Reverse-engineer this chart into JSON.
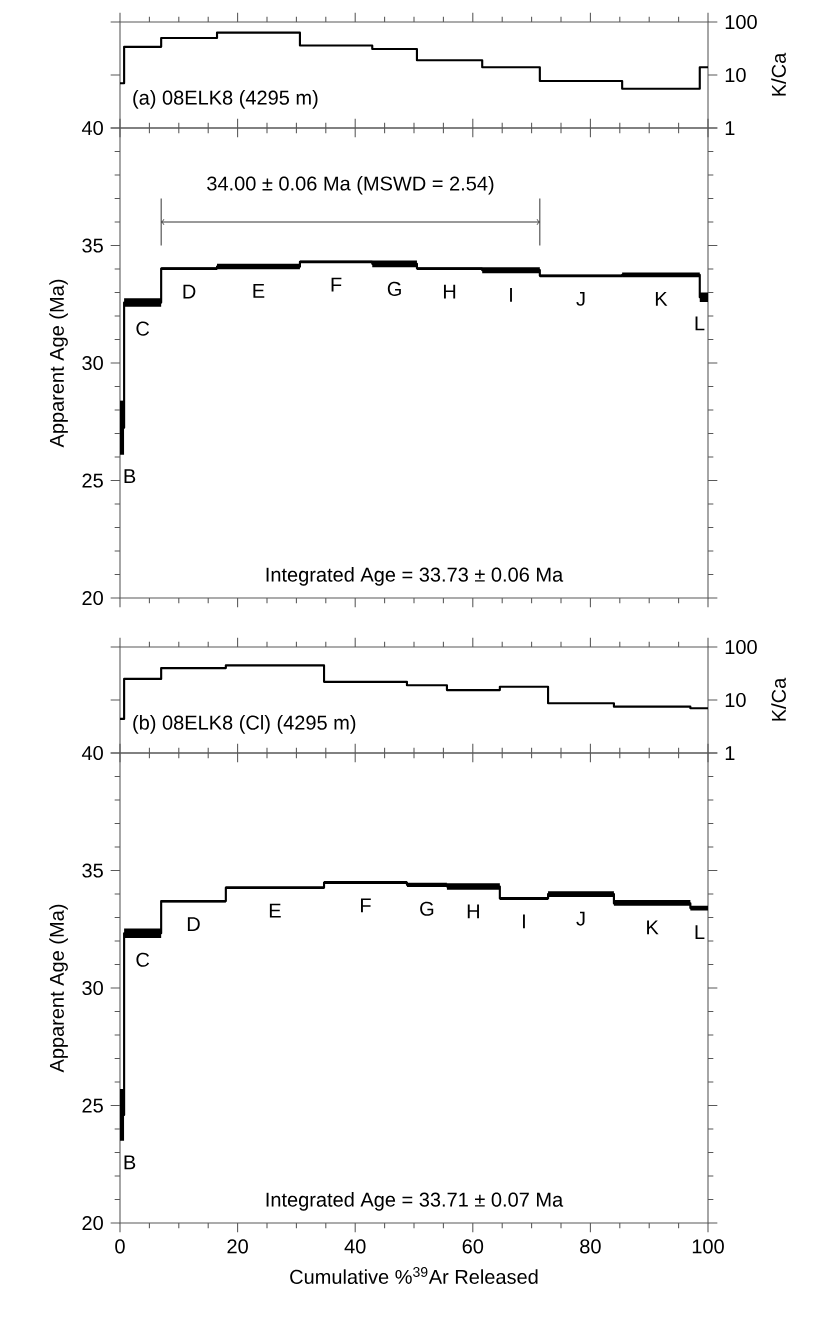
{
  "chart_data": [
    {
      "type": "step",
      "title": "(a) 08ELK8 (4295 m)",
      "y2label": "K/Ca",
      "xlim": [
        0,
        100
      ],
      "xticks": [
        0,
        20,
        40,
        60,
        80,
        100
      ],
      "y2lim": [
        1,
        100
      ],
      "y2ticks": [
        1,
        10,
        100
      ],
      "log": "y2",
      "tick_labels": "y",
      "series": [
        {
          "color": "#000000",
          "axis": "y2",
          "x": [
            0,
            0.7,
            7.0,
            16.5,
            30.6,
            42.9,
            50.5,
            61.6,
            71.4,
            85.4,
            98.6,
            100
          ],
          "values": [
            7,
            34,
            50,
            63,
            36,
            31,
            19,
            14,
            7.7,
            5.5,
            14,
            14
          ]
        }
      ]
    },
    {
      "type": "step",
      "ylabel": "Apparent Age (Ma)",
      "xlim": [
        0,
        100
      ],
      "xticks": [
        0,
        20,
        40,
        60,
        80,
        100
      ],
      "ylim": [
        20,
        40
      ],
      "yticks": [
        20,
        25,
        30,
        35,
        40
      ],
      "tick_labels": "y",
      "series": [
        {
          "color": "#000000",
          "x": [
            0,
            0.7,
            7.0,
            16.5,
            30.6,
            42.9,
            50.5,
            61.6,
            71.4,
            85.4,
            98.6,
            100
          ],
          "values": [
            27.25,
            32.57,
            34.02,
            34.1,
            34.31,
            34.22,
            34.02,
            33.95,
            33.71,
            33.75,
            32.8,
            32.8
          ],
          "lower": [
            26.1,
            32.39,
            33.96,
            33.99,
            34.25,
            34.08,
            33.96,
            33.82,
            33.65,
            33.65,
            32.6,
            32.6
          ],
          "upper": [
            28.4,
            32.76,
            34.08,
            34.22,
            34.36,
            34.36,
            34.08,
            34.08,
            33.77,
            33.85,
            33.0,
            33.0
          ]
        },
        {
          "type": "line",
          "color": "#000000",
          "marker": "cross",
          "x": [
            7.0,
            71.4
          ],
          "values": [
            36.0,
            36.0
          ]
        }
      ],
      "annotations": [
        "B",
        "C",
        "D",
        "E",
        "F",
        "G",
        "H",
        "I",
        "J",
        "K",
        "L",
        "Integrated Age = 33.73 ± 0.06 Ma",
        {
          "text": "34.00 ± 0.06 Ma (MSWD = 2.54)",
          "x": 39.2,
          "y": 36.0
        }
      ]
    },
    {
      "type": "step",
      "title": "(b) 08ELK8 (Cl) (4295 m)",
      "y2label": "K/Ca",
      "xlim": [
        0,
        100
      ],
      "xticks": [
        0,
        20,
        40,
        60,
        80,
        100
      ],
      "y2lim": [
        1,
        100
      ],
      "y2ticks": [
        1,
        10,
        100
      ],
      "log": "y2",
      "tick_labels": "y",
      "series": [
        {
          "color": "#000000",
          "axis": "y2",
          "x": [
            0,
            0.7,
            7.0,
            18.0,
            34.7,
            48.8,
            55.6,
            64.6,
            72.8,
            84.0,
            97.0,
            100
          ],
          "values": [
            4.4,
            25,
            40,
            45,
            22,
            19,
            15.4,
            17.8,
            8.7,
            7.5,
            7,
            7
          ]
        }
      ]
    },
    {
      "type": "step",
      "ylabel": "Apparent Age (Ma)",
      "xlabel": "Cumulative %$^{39}$Ar Released",
      "xlim": [
        0,
        100
      ],
      "xticks": [
        0,
        20,
        40,
        60,
        80,
        100
      ],
      "ylim": [
        20,
        40
      ],
      "yticks": [
        20,
        25,
        30,
        35,
        40
      ],
      "series": [
        {
          "color": "#000000",
          "x": [
            0,
            0.7,
            7.0,
            18.0,
            34.7,
            48.8,
            55.6,
            64.6,
            72.8,
            84.0,
            97.0,
            100
          ],
          "values": [
            24.6,
            32.33,
            33.7,
            34.27,
            34.49,
            34.39,
            34.32,
            33.81,
            34.0,
            33.6,
            33.4,
            33.4
          ],
          "lower": [
            23.5,
            32.13,
            33.64,
            34.21,
            34.43,
            34.3,
            34.18,
            33.75,
            33.87,
            33.5,
            33.3,
            33.3
          ],
          "upper": [
            25.7,
            32.53,
            33.75,
            34.32,
            34.55,
            34.48,
            34.46,
            33.87,
            34.12,
            33.75,
            33.5,
            33.5
          ]
        }
      ],
      "annotations": [
        "B",
        "C",
        "D",
        "E",
        "F",
        "G",
        "H",
        "I",
        "J",
        "K",
        "L",
        "Integrated Age = 33.71 ± 0.07 Ma"
      ]
    }
  ]
}
